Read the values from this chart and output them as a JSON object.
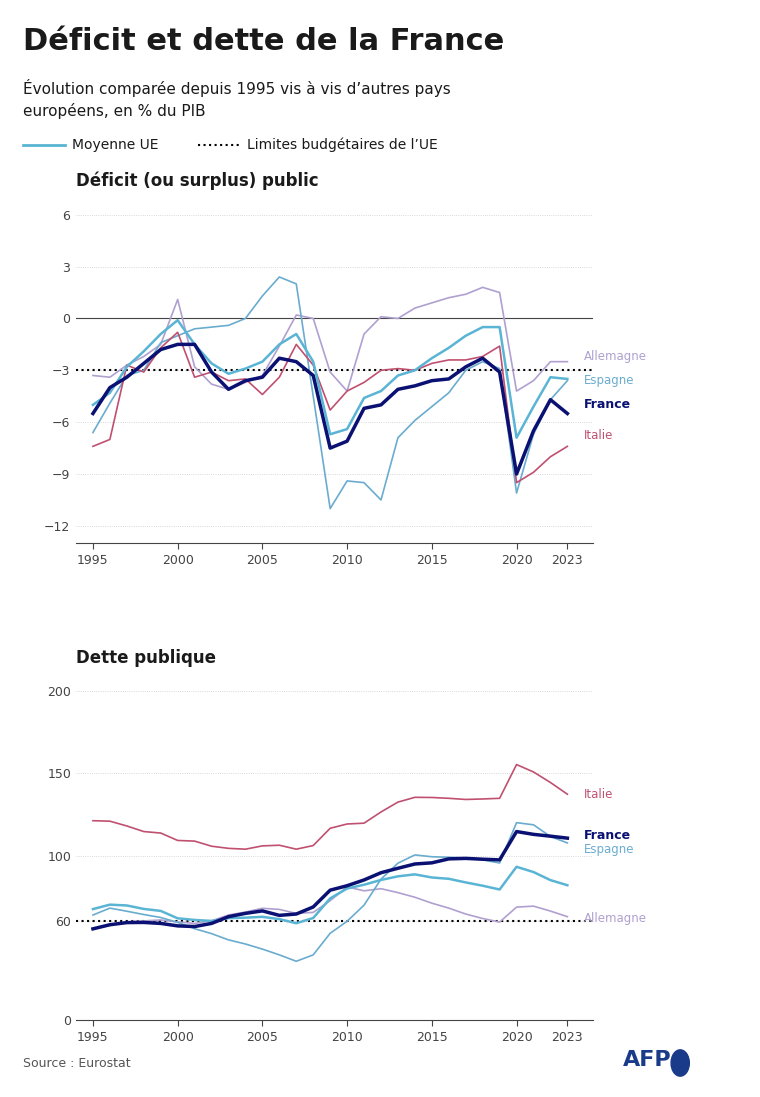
{
  "title": "Déficit et dette de la France",
  "subtitle": "Évolution comparée depuis 1995 vis à vis d’autres pays\neuropéens, en % du PIB",
  "legend_ue": "Moyenne UE",
  "legend_limits": "Limites budgétaires de l’UE",
  "deficit_title": "Déficit (ou surplus) public",
  "dette_title": "Dette publique",
  "source": "Source : Eurostat",
  "years": [
    1995,
    1996,
    1997,
    1998,
    1999,
    2000,
    2001,
    2002,
    2003,
    2004,
    2005,
    2006,
    2007,
    2008,
    2009,
    2010,
    2011,
    2012,
    2013,
    2014,
    2015,
    2016,
    2017,
    2018,
    2019,
    2020,
    2021,
    2022,
    2023
  ],
  "deficit": {
    "France": [
      -5.5,
      -4.0,
      -3.4,
      -2.6,
      -1.8,
      -1.5,
      -1.5,
      -3.1,
      -4.1,
      -3.6,
      -3.4,
      -2.3,
      -2.5,
      -3.3,
      -7.5,
      -7.1,
      -5.2,
      -5.0,
      -4.1,
      -3.9,
      -3.6,
      -3.5,
      -2.8,
      -2.3,
      -3.1,
      -9.0,
      -6.5,
      -4.7,
      -5.5
    ],
    "Allemagne": [
      -3.3,
      -3.4,
      -2.7,
      -2.2,
      -1.5,
      1.1,
      -2.8,
      -3.8,
      -4.1,
      -3.7,
      -3.3,
      -1.6,
      0.2,
      0.0,
      -3.1,
      -4.2,
      -0.9,
      0.1,
      0.0,
      0.6,
      0.9,
      1.2,
      1.4,
      1.8,
      1.5,
      -4.2,
      -3.6,
      -2.5,
      -2.5
    ],
    "Espagne": [
      -6.6,
      -4.9,
      -3.3,
      -3.0,
      -1.4,
      -1.0,
      -0.6,
      -0.5,
      -0.4,
      0.0,
      1.3,
      2.4,
      2.0,
      -4.5,
      -11.0,
      -9.4,
      -9.5,
      -10.5,
      -6.9,
      -5.9,
      -5.1,
      -4.3,
      -3.0,
      -2.5,
      -2.9,
      -10.1,
      -6.7,
      -4.7,
      -3.6
    ],
    "Italie": [
      -7.4,
      -7.0,
      -2.7,
      -3.1,
      -1.7,
      -0.8,
      -3.4,
      -3.1,
      -3.6,
      -3.5,
      -4.4,
      -3.4,
      -1.5,
      -2.7,
      -5.3,
      -4.2,
      -3.7,
      -3.0,
      -2.9,
      -3.0,
      -2.6,
      -2.4,
      -2.4,
      -2.2,
      -1.6,
      -9.5,
      -8.9,
      -8.0,
      -7.4
    ],
    "UE": [
      -5.0,
      -4.3,
      -2.8,
      -1.9,
      -0.9,
      -0.1,
      -1.5,
      -2.6,
      -3.2,
      -2.9,
      -2.5,
      -1.5,
      -0.9,
      -2.5,
      -6.7,
      -6.4,
      -4.6,
      -4.2,
      -3.3,
      -3.0,
      -2.3,
      -1.7,
      -1.0,
      -0.5,
      -0.5,
      -6.9,
      -5.1,
      -3.4,
      -3.5
    ]
  },
  "dette": {
    "France": [
      55.5,
      58.0,
      59.3,
      59.4,
      58.8,
      57.3,
      56.9,
      58.8,
      62.9,
      64.9,
      66.4,
      63.7,
      64.5,
      68.8,
      79.0,
      81.7,
      85.2,
      89.6,
      92.3,
      94.9,
      95.6,
      98.0,
      98.3,
      97.8,
      97.4,
      114.6,
      112.9,
      111.8,
      110.6
    ],
    "Allemagne": [
      55.6,
      57.6,
      59.7,
      60.3,
      60.9,
      59.7,
      58.8,
      60.4,
      63.9,
      65.7,
      68.0,
      67.3,
      64.9,
      65.5,
      72.6,
      81.0,
      78.6,
      79.9,
      77.5,
      74.7,
      71.1,
      68.1,
      64.5,
      61.8,
      59.6,
      68.7,
      69.3,
      66.3,
      62.9
    ],
    "Espagne": [
      63.9,
      68.1,
      66.2,
      64.2,
      62.4,
      59.4,
      55.6,
      52.6,
      48.8,
      46.3,
      43.2,
      39.7,
      35.8,
      39.7,
      52.8,
      60.1,
      69.9,
      85.7,
      95.4,
      100.4,
      99.3,
      99.0,
      98.6,
      97.4,
      95.5,
      120.0,
      118.7,
      111.6,
      107.7
    ],
    "Italie": [
      121.2,
      120.9,
      118.0,
      114.6,
      113.7,
      109.2,
      108.8,
      105.7,
      104.4,
      103.9,
      105.9,
      106.3,
      103.9,
      106.1,
      116.6,
      119.2,
      119.7,
      126.5,
      132.5,
      135.4,
      135.3,
      134.8,
      134.1,
      134.4,
      134.8,
      155.3,
      150.8,
      144.4,
      137.3
    ],
    "UE": [
      67.5,
      70.2,
      69.7,
      67.6,
      66.4,
      61.9,
      60.9,
      60.3,
      62.0,
      62.3,
      62.8,
      61.4,
      58.9,
      62.1,
      74.0,
      80.0,
      82.3,
      85.2,
      87.4,
      88.6,
      86.7,
      85.9,
      83.7,
      81.7,
      79.4,
      93.2,
      90.0,
      85.1,
      82.0
    ]
  },
  "colors": {
    "France": "#0a1172",
    "Allemagne": "#b0a0d0",
    "Espagne": "#6aaccf",
    "Italie": "#c05070",
    "UE": "#5ab4d4"
  },
  "linewidths": {
    "France": 2.5,
    "Allemagne": 1.2,
    "Espagne": 1.2,
    "Italie": 1.2,
    "UE": 1.8
  },
  "deficit_ylim": [
    -13,
    7
  ],
  "deficit_yticks": [
    -12,
    -9,
    -6,
    -3,
    0,
    3,
    6
  ],
  "deficit_limit": -3,
  "dette_ylim": [
    0,
    210
  ],
  "dette_yticks": [
    0,
    60,
    100,
    150,
    200
  ],
  "dette_limit": 60,
  "xticks": [
    1995,
    2000,
    2005,
    2010,
    2015,
    2020,
    2023
  ],
  "bg_color": "#ffffff",
  "text_color": "#1a1a1a",
  "grid_color": "#cccccc",
  "axis_color": "#444444"
}
